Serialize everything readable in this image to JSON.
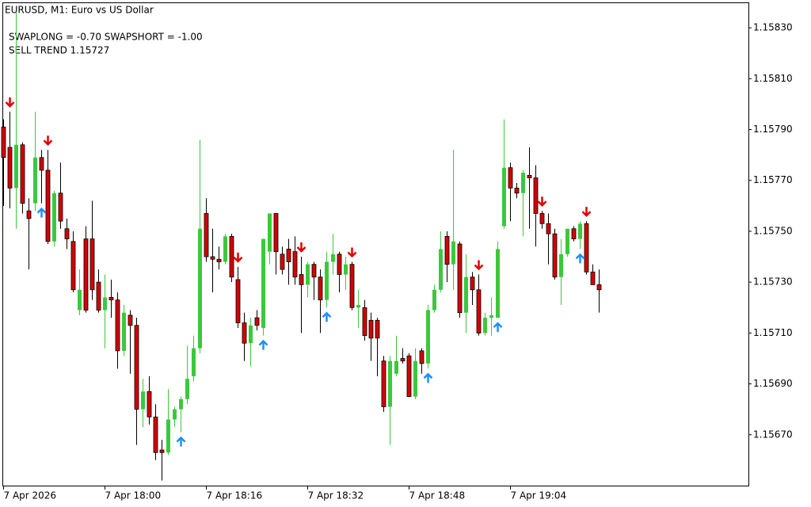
{
  "chart_data": {
    "type": "candlestick",
    "title": "EURUSD, M1:  Euro vs US Dollar",
    "annotations": [
      "SWAPLONG = -0.70   SWAPSHORT = -1.00",
      "SELL TREND 1.15727"
    ],
    "categories": [
      "7 Apr 2026",
      null,
      null,
      null,
      null,
      null,
      null,
      null,
      null,
      null,
      null,
      null,
      null,
      null,
      null,
      null,
      "7 Apr 18:00",
      null,
      null,
      null,
      null,
      null,
      null,
      null,
      null,
      null,
      null,
      null,
      null,
      null,
      null,
      null,
      "7 Apr 18:16",
      null,
      null,
      null,
      null,
      null,
      null,
      null,
      null,
      null,
      null,
      null,
      null,
      null,
      null,
      null,
      "7 Apr 18:32",
      null,
      null,
      null,
      null,
      null,
      null,
      null,
      null,
      null,
      null,
      null,
      null,
      null,
      null,
      null,
      "7 Apr 18:48",
      null,
      null,
      null,
      null,
      null,
      null,
      null,
      null,
      null,
      null,
      null,
      null,
      null,
      null,
      null,
      "7 Apr 19:04",
      null,
      null,
      null,
      null,
      null,
      null,
      null,
      null,
      null,
      null,
      null,
      null,
      null,
      null
    ],
    "open": [
      1.15791,
      1.15783,
      1.15767,
      1.15784,
      1.15758,
      1.15761,
      1.15779,
      1.15774,
      1.15746,
      1.15765,
      1.15751,
      1.15746,
      1.15719,
      1.15747,
      1.15747,
      1.1573,
      1.15719,
      1.15724,
      1.15723,
      1.15703,
      1.15717,
      1.15713,
      1.1568,
      1.15687,
      1.15677,
      1.15664,
      1.15663,
      1.15676,
      1.1568,
      1.15684,
      1.15693,
      1.15704,
      1.15757,
      1.1574,
      1.15739,
      1.15738,
      1.15748,
      1.15731,
      1.15714,
      1.15706,
      1.15716,
      1.15712,
      1.15742,
      1.15757,
      1.15741,
      1.15743,
      1.15742,
      1.15733,
      1.15729,
      1.15737,
      1.15732,
      1.15723,
      1.15738,
      1.15741,
      1.15733,
      1.15737,
      1.1572,
      1.1572,
      1.15715,
      1.15715,
      1.15699,
      1.15681,
      1.15694,
      1.157,
      1.15701,
      1.15685,
      1.15703,
      1.15698,
      1.15719,
      1.15727,
      1.15748,
      1.15737,
      1.15745,
      1.15718,
      1.15732,
      1.15727,
      1.1571,
      1.15716,
      1.15716,
      1.15752,
      1.15775,
      1.15767,
      1.15765,
      1.15772,
      1.15771,
      1.15757,
      1.15753,
      1.15749,
      1.15732,
      1.15741,
      1.15751,
      1.15747,
      1.15753,
      1.15734,
      1.15729
    ],
    "high": [
      1.15794,
      1.15797,
      1.15836,
      1.15785,
      1.15763,
      1.15797,
      1.15782,
      1.15782,
      1.15766,
      1.15777,
      1.15755,
      1.1575,
      1.15735,
      1.15752,
      1.15762,
      1.15735,
      1.15733,
      1.15731,
      1.15726,
      1.15721,
      1.15719,
      1.15716,
      1.15692,
      1.15693,
      1.15682,
      1.15668,
      1.15688,
      1.15681,
      1.15685,
      1.15705,
      1.15709,
      1.15786,
      1.15763,
      1.15751,
      1.15744,
      1.15749,
      1.15749,
      1.15736,
      1.15718,
      1.15716,
      1.15719,
      1.15747,
      1.15757,
      1.15757,
      1.15744,
      1.15747,
      1.15748,
      1.1574,
      1.15738,
      1.15738,
      1.15735,
      1.15742,
      1.15749,
      1.15742,
      1.1574,
      1.15738,
      1.15727,
      1.15723,
      1.15718,
      1.15716,
      1.15701,
      1.15701,
      1.15709,
      1.15704,
      1.15702,
      1.15704,
      1.15704,
      1.15721,
      1.15729,
      1.1575,
      1.1575,
      1.15782,
      1.15746,
      1.15741,
      1.15734,
      1.15733,
      1.15718,
      1.15724,
      1.15746,
      1.15794,
      1.15777,
      1.15769,
      1.15774,
      1.15783,
      1.15776,
      1.15758,
      1.15757,
      1.15751,
      1.15747,
      1.15751,
      1.15752,
      1.15754,
      1.15754,
      1.15737,
      1.15735
    ],
    "low": [
      1.1576,
      1.15759,
      1.15751,
      1.15757,
      1.15735,
      1.15758,
      1.15761,
      1.15745,
      1.15744,
      1.15751,
      1.15743,
      1.15726,
      1.15717,
      1.15718,
      1.15723,
      1.15718,
      1.15704,
      1.15716,
      1.15696,
      1.15701,
      1.15694,
      1.15666,
      1.15673,
      1.15674,
      1.1566,
      1.15652,
      1.15662,
      1.15673,
      1.15671,
      1.15682,
      1.15691,
      1.15702,
      1.15738,
      1.15726,
      1.15735,
      1.15737,
      1.1573,
      1.15712,
      1.15699,
      1.15697,
      1.15711,
      1.15709,
      1.15737,
      1.15733,
      1.15733,
      1.15729,
      1.15729,
      1.1571,
      1.15724,
      1.15723,
      1.1571,
      1.1572,
      1.15733,
      1.15726,
      1.15727,
      1.15719,
      1.15712,
      1.15707,
      1.15699,
      1.15693,
      1.15679,
      1.15666,
      1.15693,
      1.15698,
      1.15685,
      1.15684,
      1.15694,
      1.15696,
      1.15718,
      1.15726,
      1.1573,
      1.15727,
      1.15716,
      1.1571,
      1.15721,
      1.15709,
      1.15709,
      1.15709,
      1.15716,
      1.15751,
      1.15754,
      1.15763,
      1.15748,
      1.15751,
      1.15744,
      1.15751,
      1.15737,
      1.15731,
      1.15721,
      1.1574,
      1.15746,
      1.15743,
      1.15733,
      1.15729,
      1.15718
    ],
    "close": [
      1.15779,
      1.15767,
      1.15784,
      1.15761,
      1.15755,
      1.15779,
      1.15774,
      1.15746,
      1.15765,
      1.15754,
      1.15747,
      1.15727,
      1.15727,
      1.15719,
      1.15727,
      1.15719,
      1.15724,
      1.15723,
      1.15703,
      1.15718,
      1.15713,
      1.1568,
      1.15687,
      1.15677,
      1.15663,
      1.15663,
      1.15676,
      1.1568,
      1.15684,
      1.15692,
      1.15704,
      1.15751,
      1.1574,
      1.15739,
      1.15738,
      1.15748,
      1.15732,
      1.15714,
      1.15706,
      1.15713,
      1.15713,
      1.15747,
      1.15757,
      1.15742,
      1.15735,
      1.15738,
      1.15732,
      1.15729,
      1.15737,
      1.15732,
      1.15723,
      1.15738,
      1.15741,
      1.15733,
      1.15737,
      1.1572,
      1.15721,
      1.15709,
      1.15708,
      1.15708,
      1.15681,
      1.15699,
      1.15699,
      1.15699,
      1.15685,
      1.15699,
      1.15698,
      1.15719,
      1.15727,
      1.15743,
      1.15737,
      1.15746,
      1.15718,
      1.15732,
      1.15727,
      1.1571,
      1.15716,
      1.15717,
      1.15743,
      1.15775,
      1.15767,
      1.15765,
      1.15773,
      1.15771,
      1.15757,
      1.15753,
      1.15749,
      1.15732,
      1.15741,
      1.15751,
      1.15747,
      1.15753,
      1.15734,
      1.15729,
      1.15727
    ],
    "sell_signals": [
      1,
      7,
      37,
      47,
      55,
      75,
      85,
      92
    ],
    "buy_signals": [
      6,
      28,
      41,
      51,
      67,
      78,
      91
    ],
    "up_color": "#3cc83c",
    "down_color": "#d40000",
    "sell_color": "#e00000",
    "buy_color": "#1e90ff",
    "ylim": [
      1.1565,
      1.1584
    ],
    "yticks": [
      {
        "value": 1.1567,
        "label": "1.15670"
      },
      {
        "value": 1.1569,
        "label": "1.15690"
      },
      {
        "value": 1.1571,
        "label": "1.15710"
      },
      {
        "value": 1.1573,
        "label": "1.15730"
      },
      {
        "value": 1.1575,
        "label": "1.15750"
      },
      {
        "value": 1.1577,
        "label": "1.15770"
      },
      {
        "value": 1.1579,
        "label": "1.15790"
      },
      {
        "value": 1.1581,
        "label": "1.15810"
      },
      {
        "value": 1.1583,
        "label": "1.15830"
      }
    ],
    "grid": false
  }
}
